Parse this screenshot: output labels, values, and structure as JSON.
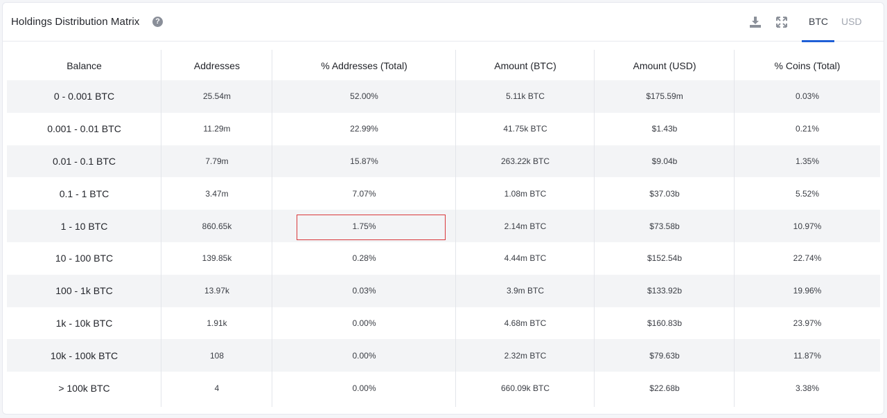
{
  "header": {
    "title": "Holdings Distribution Matrix",
    "help_icon": "question-circle-icon",
    "download_icon": "download-icon",
    "expand_icon": "expand-arrows-icon",
    "tabs": [
      {
        "label": "BTC",
        "active": true
      },
      {
        "label": "USD",
        "active": false
      }
    ],
    "accent_color": "#1f5fd6"
  },
  "table": {
    "columns": [
      "Balance",
      "Addresses",
      "% Addresses (Total)",
      "Amount (BTC)",
      "Amount (USD)",
      "% Coins (Total)"
    ],
    "rows": [
      [
        "0 - 0.001 BTC",
        "25.54m",
        "52.00%",
        "5.11k BTC",
        "$175.59m",
        "0.03%"
      ],
      [
        "0.001 - 0.01 BTC",
        "11.29m",
        "22.99%",
        "41.75k BTC",
        "$1.43b",
        "0.21%"
      ],
      [
        "0.01 - 0.1 BTC",
        "7.79m",
        "15.87%",
        "263.22k BTC",
        "$9.04b",
        "1.35%"
      ],
      [
        "0.1 - 1 BTC",
        "3.47m",
        "7.07%",
        "1.08m BTC",
        "$37.03b",
        "5.52%"
      ],
      [
        "1 - 10 BTC",
        "860.65k",
        "1.75%",
        "2.14m BTC",
        "$73.58b",
        "10.97%"
      ],
      [
        "10 - 100 BTC",
        "139.85k",
        "0.28%",
        "4.44m BTC",
        "$152.54b",
        "22.74%"
      ],
      [
        "100 - 1k BTC",
        "13.97k",
        "0.03%",
        "3.9m BTC",
        "$133.92b",
        "19.96%"
      ],
      [
        "1k - 10k BTC",
        "1.91k",
        "0.00%",
        "4.68m BTC",
        "$160.83b",
        "23.97%"
      ],
      [
        "10k - 100k BTC",
        "108",
        "0.00%",
        "2.32m BTC",
        "$79.63b",
        "11.87%"
      ],
      [
        "> 100k BTC",
        "4",
        "0.00%",
        "660.09k BTC",
        "$22.68b",
        "3.38%"
      ]
    ],
    "highlighted_cell": {
      "row": 4,
      "column": 2,
      "color": "#d9373a"
    }
  }
}
